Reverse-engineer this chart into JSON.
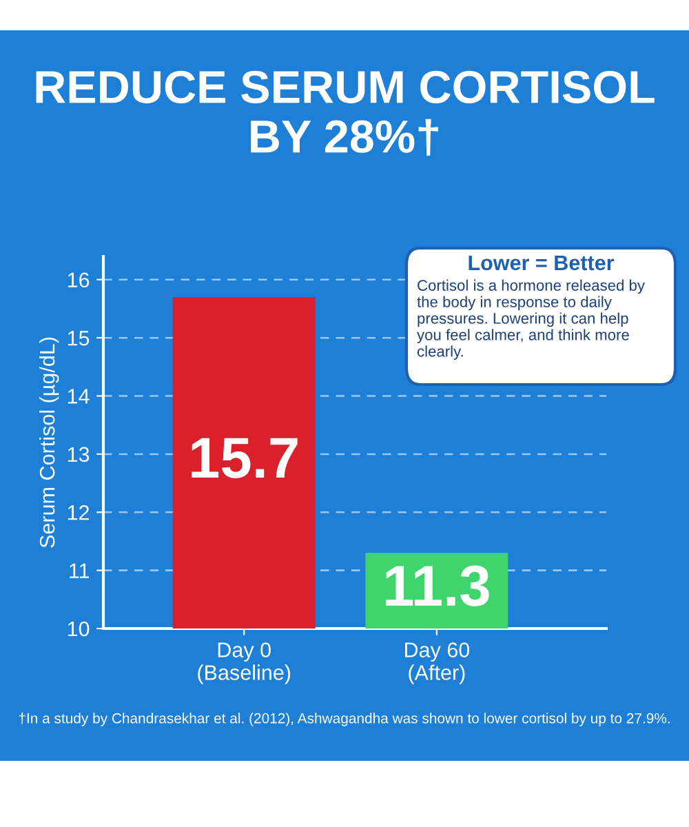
{
  "chart_data": {
    "type": "bar",
    "title": "REDUCE SERUM CORTISOL BY 28%†",
    "categories": [
      "Day 0\n(Baseline)",
      "Day 60\n(After)"
    ],
    "values": [
      15.7,
      11.3
    ],
    "colors": [
      "#d9202b",
      "#3fd56c"
    ],
    "ylabel": "Serum Cortisol (µg/dL)",
    "ylim": [
      10,
      16.4
    ],
    "yticks": [
      10,
      11,
      12,
      13,
      14,
      15,
      16
    ],
    "grid": "y",
    "data_labels": true,
    "annotations": [
      "Lower = Better",
      "Cortisol is a hormone released by the body in response to daily pressures. Lowering it can help you feel calmer, and think more clearly.",
      "†In a study by Chandrasekhar et al. (2012), Ashwagandha was shown to lower cortisol by up to 27.9%."
    ]
  }
}
